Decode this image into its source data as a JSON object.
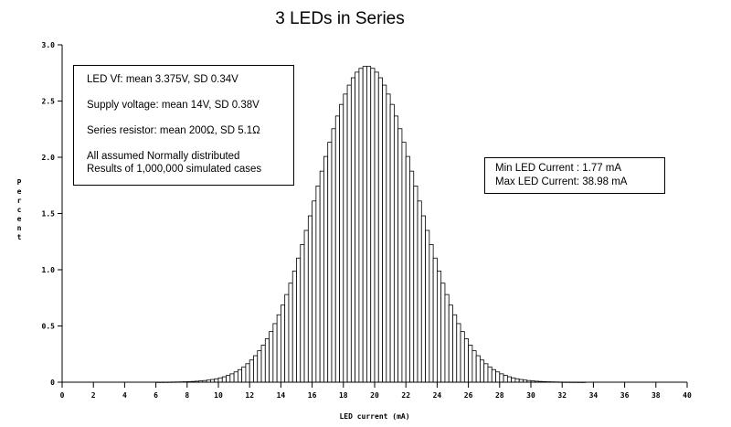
{
  "chart_data": {
    "type": "bar",
    "title": "3 LEDs in Series",
    "xlabel": "LED current (mA)",
    "ylabel": "Percent",
    "xlim": [
      0,
      40
    ],
    "ylim": [
      0,
      3.0
    ],
    "xticks": [
      0,
      2,
      4,
      6,
      8,
      10,
      12,
      14,
      16,
      18,
      20,
      22,
      24,
      26,
      28,
      30,
      32,
      34,
      36,
      38,
      40
    ],
    "xtick_labels": [
      "0",
      "2",
      "4",
      "6",
      "8",
      "10",
      "12",
      "14",
      "16",
      "18",
      "20",
      "22",
      "24",
      "26",
      "28",
      "30",
      "32",
      "34",
      "36",
      "38",
      "40"
    ],
    "yticks": [
      0,
      0.5,
      1.0,
      1.5,
      2.0,
      2.5,
      3.0
    ],
    "ytick_labels": [
      "0",
      "0.5",
      "1.0",
      "1.5",
      "2.0",
      "2.5",
      "3.0"
    ],
    "bin_width": 0.25,
    "bins_start": 6.0,
    "bins_end": 33.5,
    "distribution": {
      "mean": 19.5,
      "sd": 3.2,
      "peak_percent": 2.81
    },
    "grid": false,
    "legend": "none"
  },
  "info_box": {
    "line1": "LED Vf:  mean 3.375V,  SD 0.34V",
    "line2": "Supply voltage: mean 14V, SD 0.38V",
    "line3": "Series resistor: mean 200Ω, SD 5.1Ω",
    "line4": "All assumed Normally distributed",
    "line5": "Results of 1,000,000 simulated cases"
  },
  "current_box": {
    "min_label": "Min  LED Current :  1.77 mA",
    "max_label": "Max LED Current:  38.98 mA"
  },
  "colors": {
    "bar_fill": "#ffffff",
    "bar_stroke": "#000000",
    "axis": "#000000"
  }
}
